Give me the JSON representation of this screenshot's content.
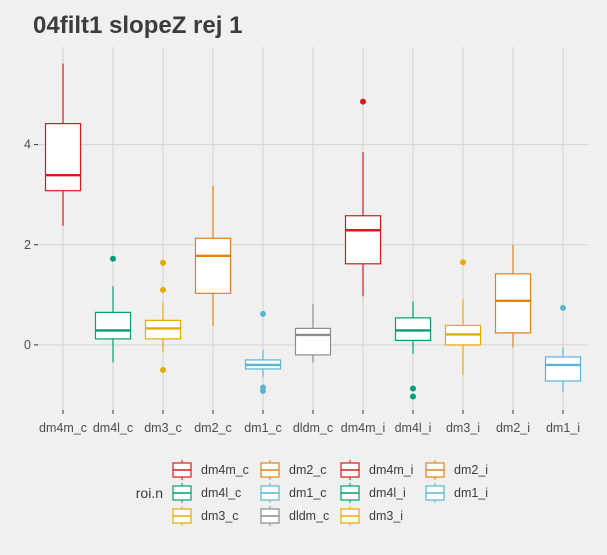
{
  "chart_data": {
    "type": "box",
    "title": "04filt1 slopeZ rej 1",
    "xlabel": "",
    "ylabel": "",
    "ylim": [
      -1.3,
      5.95
    ],
    "yticks": [
      0,
      2,
      4
    ],
    "grid": true,
    "legend_title": "roi.n",
    "legend_position": "bottom",
    "colors": {
      "dm4m": "#d7191c",
      "dm4l": "#009e73",
      "dm3": "#e6ab02",
      "dm2": "#e08214",
      "dm1": "#5ab4d2",
      "dldm": "#8c8c8c"
    },
    "categories": [
      "dm4m_c",
      "dm4l_c",
      "dm3_c",
      "dm2_c",
      "dm1_c",
      "dldm_c",
      "dm4m_i",
      "dm4l_i",
      "dm3_i",
      "dm2_i",
      "dm1_i"
    ],
    "boxes": [
      {
        "name": "dm4m_c",
        "color_key": "dm4m",
        "min": 2.38,
        "q1": 3.08,
        "median": 3.39,
        "q3": 4.42,
        "max": 5.62,
        "outliers": []
      },
      {
        "name": "dm4l_c",
        "color_key": "dm4l",
        "min": -0.35,
        "q1": 0.12,
        "median": 0.29,
        "q3": 0.65,
        "max": 1.17,
        "outliers": [
          1.72
        ]
      },
      {
        "name": "dm3_c",
        "color_key": "dm3",
        "min": -0.15,
        "q1": 0.12,
        "median": 0.33,
        "q3": 0.49,
        "max": 0.85,
        "outliers": [
          1.64,
          1.1,
          -0.5
        ]
      },
      {
        "name": "dm2_c",
        "color_key": "dm2",
        "min": 0.38,
        "q1": 1.03,
        "median": 1.78,
        "q3": 2.13,
        "max": 3.18,
        "outliers": []
      },
      {
        "name": "dm1_c",
        "color_key": "dm1",
        "min": -0.65,
        "q1": -0.48,
        "median": -0.4,
        "q3": -0.3,
        "max": -0.1,
        "outliers": [
          0.62,
          -0.85,
          -0.92
        ]
      },
      {
        "name": "dldm_c",
        "color_key": "dldm",
        "min": -0.35,
        "q1": -0.2,
        "median": 0.2,
        "q3": 0.33,
        "max": 0.82,
        "outliers": []
      },
      {
        "name": "dm4m_i",
        "color_key": "dm4m",
        "min": 0.97,
        "q1": 1.62,
        "median": 2.29,
        "q3": 2.58,
        "max": 3.85,
        "outliers": [
          4.86
        ]
      },
      {
        "name": "dm4l_i",
        "color_key": "dm4l",
        "min": -0.18,
        "q1": 0.09,
        "median": 0.29,
        "q3": 0.54,
        "max": 0.87,
        "outliers": [
          -0.87,
          -1.03
        ]
      },
      {
        "name": "dm3_i",
        "color_key": "dm3",
        "min": -0.6,
        "q1": 0.0,
        "median": 0.21,
        "q3": 0.39,
        "max": 0.91,
        "outliers": [
          1.65
        ]
      },
      {
        "name": "dm2_i",
        "color_key": "dm2",
        "min": -0.05,
        "q1": 0.24,
        "median": 0.88,
        "q3": 1.42,
        "max": 2.0,
        "outliers": []
      },
      {
        "name": "dm1_i",
        "color_key": "dm1",
        "min": -0.95,
        "q1": -0.72,
        "median": -0.4,
        "q3": -0.24,
        "max": -0.05,
        "outliers": [
          0.74
        ]
      }
    ],
    "legend": [
      {
        "label": "dm4m_c",
        "color_key": "dm4m"
      },
      {
        "label": "dm4l_c",
        "color_key": "dm4l"
      },
      {
        "label": "dm3_c",
        "color_key": "dm3"
      },
      {
        "label": "dm2_c",
        "color_key": "dm2"
      },
      {
        "label": "dm1_c",
        "color_key": "dm1"
      },
      {
        "label": "dldm_c",
        "color_key": "dldm"
      },
      {
        "label": "dm4m_i",
        "color_key": "dm4m"
      },
      {
        "label": "dm4l_i",
        "color_key": "dm4l"
      },
      {
        "label": "dm3_i",
        "color_key": "dm3"
      },
      {
        "label": "dm2_i",
        "color_key": "dm2"
      },
      {
        "label": "dm1_i",
        "color_key": "dm1"
      }
    ]
  }
}
